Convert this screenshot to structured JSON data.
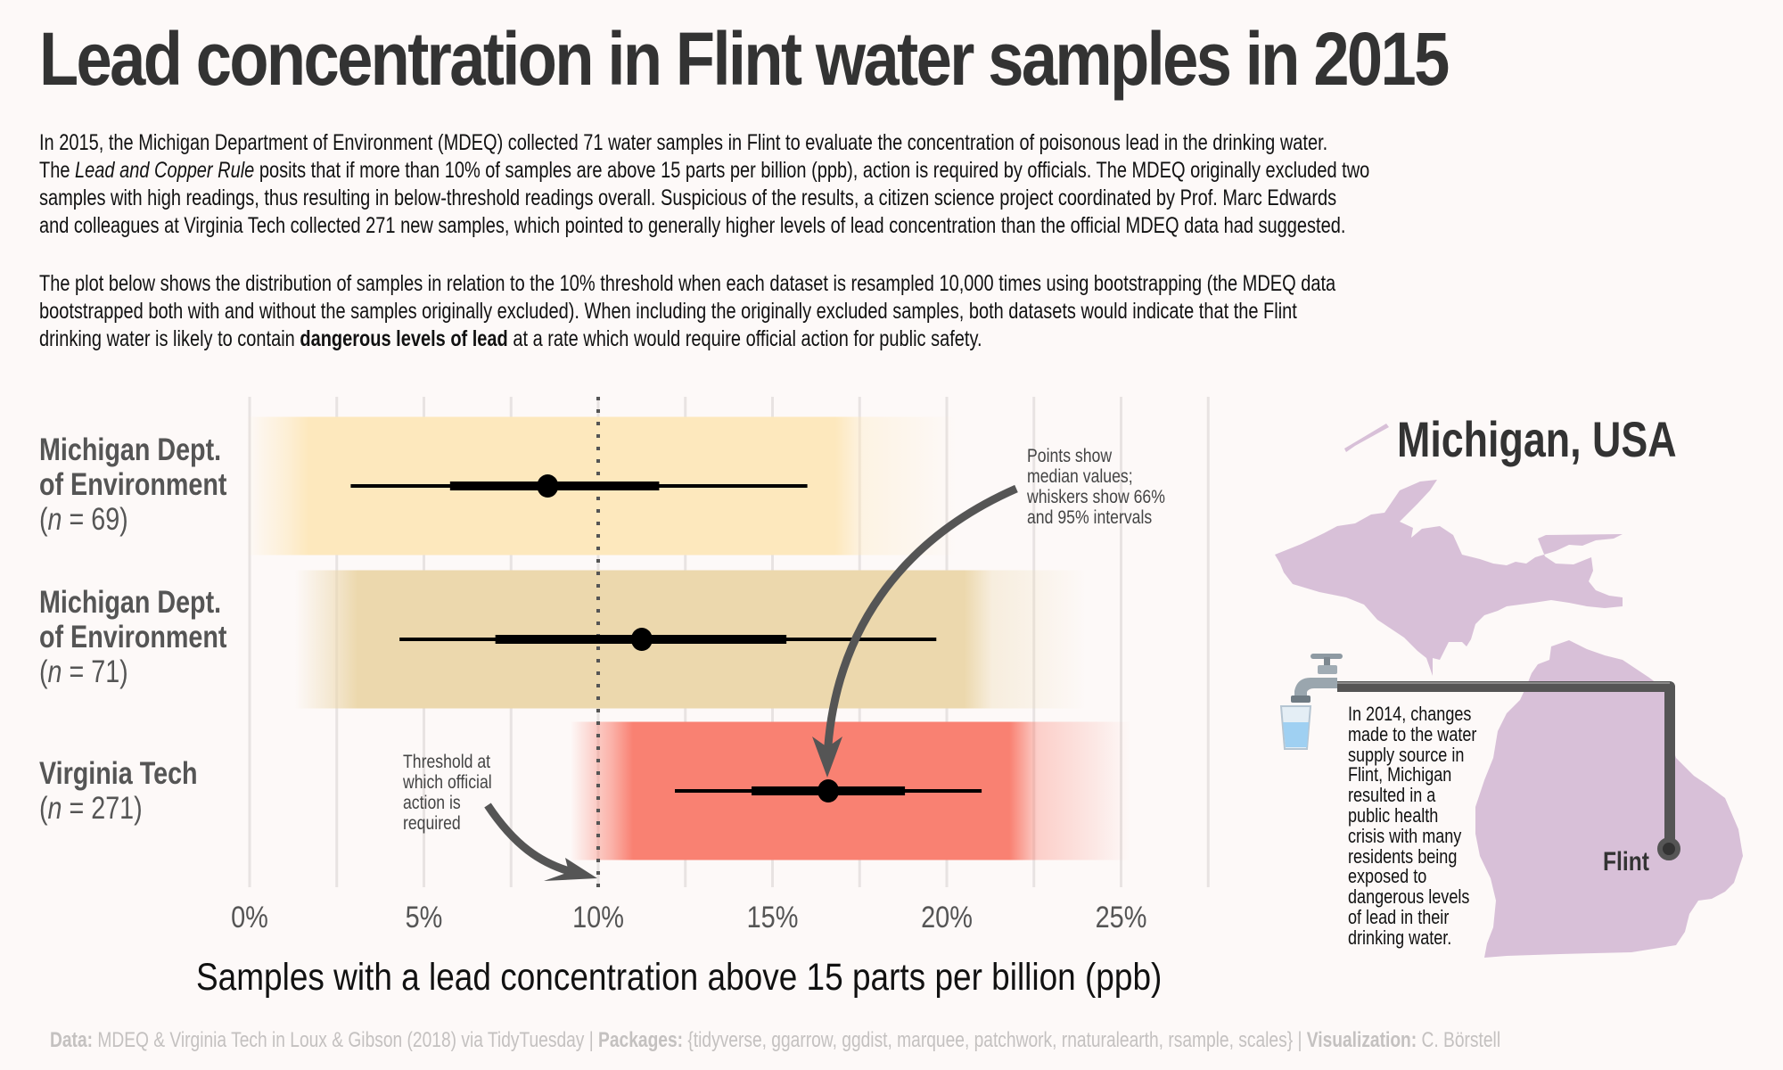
{
  "title": "Lead concentration in Flint water samples in 2015",
  "intro": {
    "p1_lines": [
      "In 2015, the Michigan Department of Environment (MDEQ) collected 71 water samples in Flint to evaluate the concentration of poisonous lead in the drinking water.",
      [
        "The ",
        {
          "i": "Lead and Copper Rule"
        },
        " posits that if more than 10% of samples are above 15 parts per billion (ppb), action is required by officials. The MDEQ originally excluded two"
      ],
      "samples with high readings, thus resulting in below-threshold readings overall. Suspicious of the results, a citizen science project coordinated by Prof. Marc Edwards",
      "and colleagues at Virginia Tech collected 271 new samples, which pointed to generally higher levels of lead concentration than the official MDEQ data had suggested."
    ],
    "p2_lines": [
      "The plot below shows the distribution of samples in relation to the 10% threshold when each dataset is resampled 10,000 times using bootstrapping (the MDEQ data",
      "bootstrapped both with and without the samples originally excluded). When including the originally excluded samples, both datasets would indicate that the Flint",
      [
        "drinking water is likely to contain ",
        {
          "b": "dangerous levels of lead"
        },
        " at a rate which would require official action for public safety."
      ]
    ]
  },
  "chart_data": {
    "type": "interval",
    "title": "",
    "xlabel": "Samples with a lead concentration above 15 parts per billion (ppb)",
    "ylabel": "",
    "xlim": [
      0,
      27.5
    ],
    "x_ticks": [
      0,
      5,
      10,
      15,
      20,
      25
    ],
    "x_tick_labels": [
      "0%",
      "5%",
      "10%",
      "15%",
      "20%",
      "25%"
    ],
    "grid_minor_step": 2.5,
    "grid": true,
    "threshold": {
      "value": 10,
      "style": "dotted",
      "label": "Threshold at\nwhich official\naction is\nrequired"
    },
    "series": [
      {
        "name": "Michigan Dept.\nof Environment",
        "n_label": "n = 69",
        "n": 69,
        "color": "#fde8bd",
        "median": 8.55,
        "interval_66": [
          5.75,
          11.75
        ],
        "interval_95": [
          2.9,
          16.0
        ]
      },
      {
        "name": "Michigan Dept.\nof Environment",
        "n_label": "n = 71",
        "n": 71,
        "color": "#ecd8ad",
        "median": 11.25,
        "interval_66": [
          7.05,
          15.4
        ],
        "interval_95": [
          4.3,
          19.7
        ]
      },
      {
        "name": "Virginia Tech",
        "n_label": "n = 271",
        "n": 271,
        "color": "#f98172",
        "median": 16.6,
        "interval_66": [
          14.4,
          18.8
        ],
        "interval_95": [
          12.2,
          21.0
        ]
      }
    ],
    "annotations": [
      {
        "text": "Points show\nmedian values;\nwhiskers show 66%\nand 95% intervals"
      },
      {
        "text": "Threshold at\nwhich official\naction is\nrequired"
      }
    ]
  },
  "rows": [
    {
      "name_lines": [
        "Michigan Dept.",
        "of Environment"
      ],
      "n_prefix": "n",
      "n_suffix": " = 69"
    },
    {
      "name_lines": [
        "Michigan Dept.",
        "of Environment"
      ],
      "n_prefix": "n",
      "n_suffix": " = 71"
    },
    {
      "name_lines": [
        "Virginia Tech"
      ],
      "n_prefix": "n",
      "n_suffix": " = 271"
    }
  ],
  "map": {
    "title": "Michigan, USA",
    "city": "Flint",
    "map_color": "#d8c0d8",
    "story": "In 2014, changes\nmade to the water\nsupply source in\nFlint, Michigan\nresulted in a\npublic health\ncrisis with many\nresidents being\nexposed to\ndangerous levels\nof lead in their\ndrinking water.",
    "icons": [
      "faucet-icon",
      "water-glass-icon"
    ]
  },
  "caption": {
    "data_label": "Data:",
    "data_value": " MDEQ & Virginia Tech in Loux & Gibson (2018) via TidyTuesday | ",
    "packages_label": "Packages:",
    "packages_value": " {tidyverse, ggarrow, ggdist, marquee, patchwork, rnaturalearth, rsample, scales} | ",
    "viz_label": "Visualization:",
    "viz_value": " C. Börstell"
  },
  "colors": {
    "text_dark": "#333333",
    "annotation": "#555555",
    "grid": "#e8e3e2",
    "background": "#fdf9f8"
  }
}
